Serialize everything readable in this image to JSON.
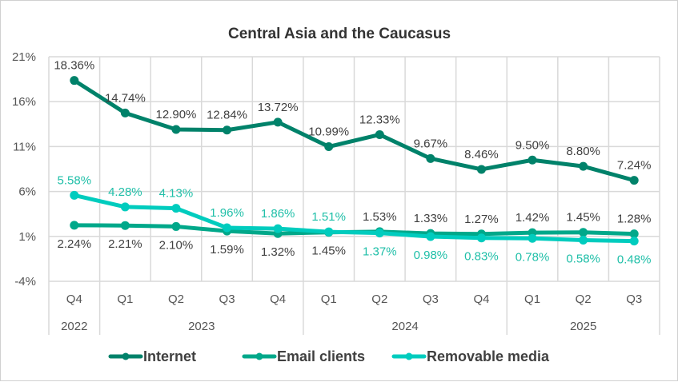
{
  "chart_data": {
    "type": "line",
    "title": "Central Asia and the Caucasus",
    "categories": [
      "Q4",
      "Q1",
      "Q2",
      "Q3",
      "Q4",
      "Q1",
      "Q2",
      "Q3",
      "Q4",
      "Q1",
      "Q2",
      "Q3"
    ],
    "years": [
      {
        "label": "2022",
        "span": 1
      },
      {
        "label": "2023",
        "span": 4
      },
      {
        "label": "2024",
        "span": 4
      },
      {
        "label": "2025",
        "span": 3
      }
    ],
    "ylim": [
      -4,
      21
    ],
    "yticks": [
      -4,
      1,
      6,
      11,
      16,
      21
    ],
    "ytick_labels": [
      "-4%",
      "1%",
      "6%",
      "11%",
      "16%",
      "21%"
    ],
    "grid": true,
    "legend": "bottom",
    "series": [
      {
        "name": "Internet",
        "color": "#00826a",
        "label_color": "#404040",
        "values": [
          18.36,
          14.74,
          12.9,
          12.84,
          13.72,
          10.99,
          12.33,
          9.67,
          8.46,
          9.5,
          8.8,
          7.24
        ],
        "labels": [
          "18.36%",
          "14.74%",
          "12.90%",
          "12.84%",
          "13.72%",
          "10.99%",
          "12.33%",
          "9.67%",
          "8.46%",
          "9.50%",
          "8.80%",
          "7.24%"
        ],
        "label_pos": [
          "above",
          "above",
          "above",
          "above",
          "above",
          "above",
          "above",
          "above",
          "above",
          "above",
          "above",
          "above"
        ]
      },
      {
        "name": "Email clients",
        "color": "#00a88a",
        "label_color": "#404040",
        "values": [
          2.24,
          2.21,
          2.1,
          1.59,
          1.32,
          1.45,
          1.53,
          1.33,
          1.27,
          1.42,
          1.45,
          1.28
        ],
        "labels": [
          "2.24%",
          "2.21%",
          "2.10%",
          "1.59%",
          "1.32%",
          "1.45%",
          "1.53%",
          "1.33%",
          "1.27%",
          "1.42%",
          "1.45%",
          "1.28%"
        ],
        "label_pos": [
          "below",
          "below",
          "below",
          "below",
          "below",
          "below",
          "above",
          "above",
          "above",
          "above",
          "above",
          "above"
        ]
      },
      {
        "name": "Removable media",
        "color": "#00ccbe",
        "label_color": "#1fbfa8",
        "values": [
          5.58,
          4.28,
          4.13,
          1.96,
          1.86,
          1.51,
          1.37,
          0.98,
          0.83,
          0.78,
          0.58,
          0.48
        ],
        "labels": [
          "5.58%",
          "4.28%",
          "4.13%",
          "1.96%",
          "1.86%",
          "1.51%",
          "1.37%",
          "0.98%",
          "0.83%",
          "0.78%",
          "0.58%",
          "0.48%"
        ],
        "label_pos": [
          "above",
          "above",
          "above",
          "above",
          "above",
          "above",
          "below",
          "below",
          "below",
          "below",
          "below",
          "below"
        ]
      }
    ]
  }
}
